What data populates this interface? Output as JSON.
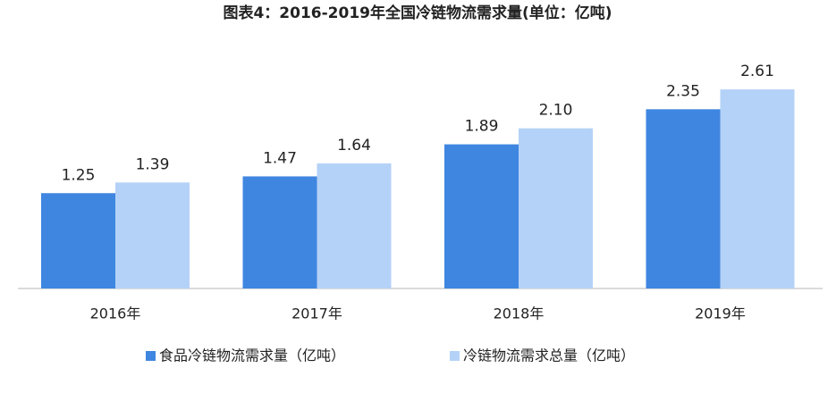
{
  "chart_data": {
    "type": "bar",
    "title": "图表4：2016-2019年全国冷链物流需求量(单位：亿吨)",
    "categories": [
      "2016年",
      "2017年",
      "2018年",
      "2019年"
    ],
    "series": [
      {
        "name": "食品冷链物流需求量（亿吨）",
        "color": "#3f86e0",
        "values": [
          1.25,
          1.47,
          1.89,
          2.35
        ],
        "value_labels": [
          "1.25",
          "1.47",
          "1.89",
          "2.35"
        ]
      },
      {
        "name": "冷链物流需求总量（亿吨）",
        "color": "#b4d2f7",
        "values": [
          1.39,
          1.64,
          2.1,
          2.61
        ],
        "value_labels": [
          "1.39",
          "1.64",
          "2.10",
          "2.61"
        ]
      }
    ]
  }
}
